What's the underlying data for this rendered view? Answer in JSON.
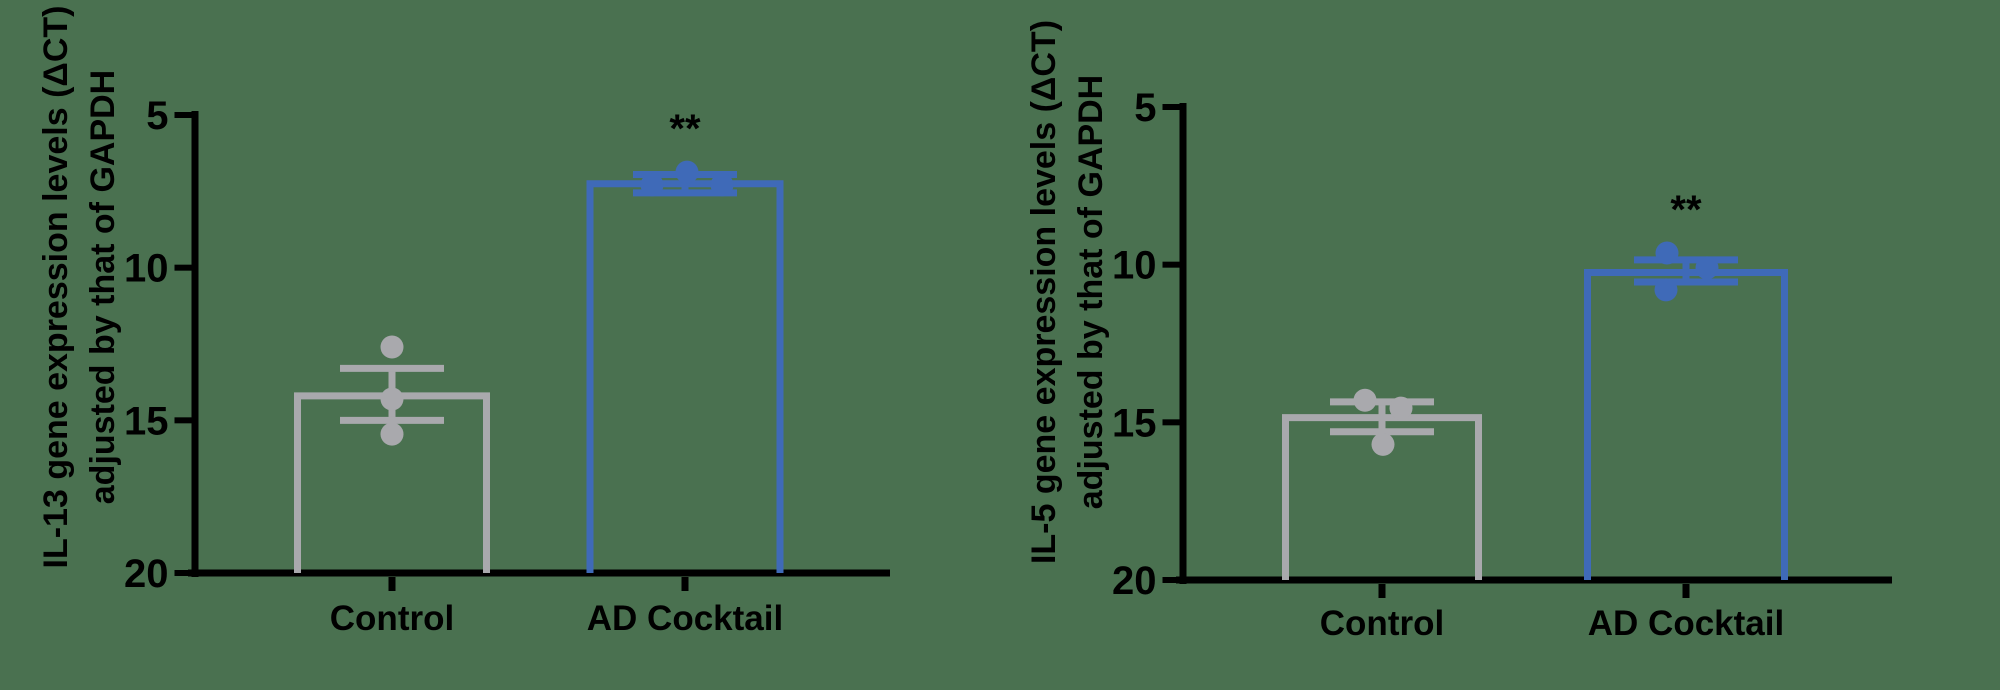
{
  "figure": {
    "background_color": "#4a7150",
    "axis_color": "#000000",
    "control_color": "#a9a9ad",
    "treatment_color": "#3f6ab8"
  },
  "chart_data": [
    {
      "type": "bar",
      "title": "",
      "ylabel_lines": [
        "IL-13 gene expression levels (ΔCT)",
        "adjusted by that of GAPDH"
      ],
      "xlabel": "",
      "y_axis_reversed": true,
      "ylim_top": 5,
      "ylim_bottom": 20,
      "yticks": [
        5,
        10,
        15,
        20
      ],
      "grid": false,
      "legend": "none",
      "categories": [
        "Control",
        "AD Cocktail"
      ],
      "series": [
        {
          "category": "Control",
          "color": "#a9a9ad",
          "mean": 14.2,
          "err_cap_values": [
            13.3,
            15.0
          ],
          "points": [
            {
              "value": 12.6,
              "dx": 0
            },
            {
              "value": 14.3,
              "dx": 0
            },
            {
              "value": 15.45,
              "dx": 0
            }
          ],
          "significance": ""
        },
        {
          "category": "AD Cocktail",
          "color": "#3f6ab8",
          "mean": 7.25,
          "err_cap_values": [
            6.95,
            7.55
          ],
          "points": [
            {
              "value": 7.29,
              "dx": -33
            },
            {
              "value": 6.87,
              "dx": 2
            },
            {
              "value": 7.29,
              "dx": 37
            }
          ],
          "significance": "**"
        }
      ]
    },
    {
      "type": "bar",
      "title": "",
      "ylabel_lines": [
        "IL-5 gene expression levels (ΔCT)",
        "adjusted by that of GAPDH"
      ],
      "xlabel": "",
      "y_axis_reversed": true,
      "ylim_top": 5,
      "ylim_bottom": 20,
      "yticks": [
        5,
        10,
        15,
        20
      ],
      "grid": false,
      "legend": "none",
      "categories": [
        "Control",
        "AD Cocktail"
      ],
      "series": [
        {
          "category": "Control",
          "color": "#a9a9ad",
          "mean": 14.85,
          "err_cap_values": [
            14.35,
            15.3
          ],
          "points": [
            {
              "value": 14.3,
              "dx": -17
            },
            {
              "value": 14.55,
              "dx": 19
            },
            {
              "value": 15.7,
              "dx": 1
            }
          ],
          "significance": ""
        },
        {
          "category": "AD Cocktail",
          "color": "#3f6ab8",
          "mean": 10.25,
          "err_cap_values": [
            9.85,
            10.55
          ],
          "points": [
            {
              "value": 9.63,
              "dx": -19
            },
            {
              "value": 10.1,
              "dx": 21
            },
            {
              "value": 10.8,
              "dx": -20
            }
          ],
          "significance": "**"
        }
      ]
    }
  ]
}
